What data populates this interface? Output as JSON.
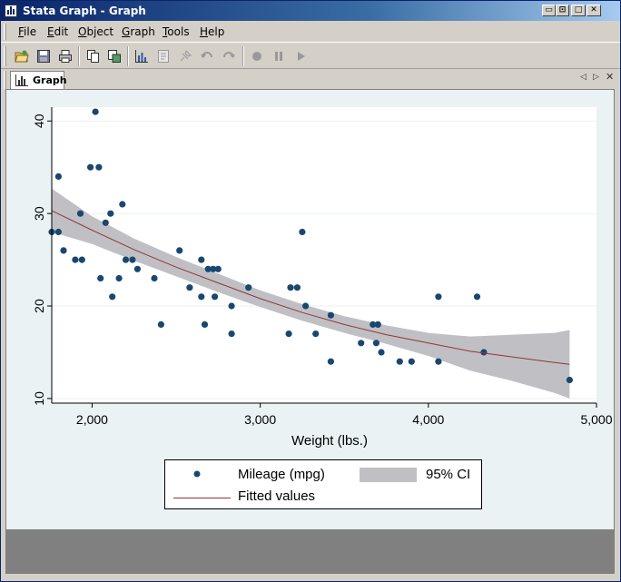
{
  "window": {
    "title": "Stata Graph - Graph"
  },
  "title_buttons": [
    "▭",
    "⊡",
    "□",
    "✕"
  ],
  "menu": [
    {
      "key": "F",
      "rest": "ile"
    },
    {
      "key": "E",
      "rest": "dit"
    },
    {
      "key": "O",
      "rest": "bject"
    },
    {
      "key": "G",
      "rest": "raph"
    },
    {
      "key": "T",
      "rest": "ools"
    },
    {
      "key": "H",
      "rest": "elp"
    }
  ],
  "toolbar_icons": [
    "open-icon",
    "save-icon",
    "print-icon",
    "copy-icon",
    "rename-icon",
    "graph-editor-icon",
    "record-icon",
    "pointer-icon",
    "undo-icon",
    "redo-icon",
    "start-recording-icon",
    "pause-icon",
    "play-icon"
  ],
  "tab": {
    "label": "Graph"
  },
  "colors": {
    "marker": "#1a476f",
    "fit_line": "#90353b",
    "ci_band": "#c0c0c4",
    "plot_bg": "#ffffff",
    "graph_bg": "#eaf2f3"
  },
  "chart_data": {
    "type": "scatter",
    "xlabel": "Weight (lbs.)",
    "ylabel": "",
    "xlim": [
      1760,
      5000
    ],
    "ylim": [
      9.5,
      41.5
    ],
    "x_ticks": [
      2000,
      3000,
      4000,
      5000
    ],
    "x_tick_labels": [
      "2,000",
      "3,000",
      "4,000",
      "5,000"
    ],
    "y_ticks": [
      10,
      20,
      30,
      40
    ],
    "y_tick_labels": [
      "10",
      "20",
      "30",
      "40"
    ],
    "grid": true,
    "legend": {
      "placement": "bottom",
      "entries": [
        "Mileage (mpg)",
        "95% CI",
        "Fitted values"
      ]
    },
    "series": [
      {
        "name": "Mileage (mpg)",
        "kind": "scatter",
        "points": [
          [
            1760,
            28
          ],
          [
            1800,
            28
          ],
          [
            1800,
            34
          ],
          [
            1830,
            26
          ],
          [
            1900,
            25
          ],
          [
            1930,
            30
          ],
          [
            1940,
            25
          ],
          [
            1990,
            35
          ],
          [
            2020,
            41
          ],
          [
            2040,
            35
          ],
          [
            2050,
            23
          ],
          [
            2080,
            29
          ],
          [
            2110,
            30
          ],
          [
            2120,
            21
          ],
          [
            2160,
            23
          ],
          [
            2180,
            31
          ],
          [
            2200,
            25
          ],
          [
            2240,
            25
          ],
          [
            2270,
            24
          ],
          [
            2370,
            23
          ],
          [
            2410,
            18
          ],
          [
            2520,
            26
          ],
          [
            2580,
            22
          ],
          [
            2650,
            25
          ],
          [
            2650,
            21
          ],
          [
            2670,
            18
          ],
          [
            2690,
            24
          ],
          [
            2720,
            24
          ],
          [
            2730,
            21
          ],
          [
            2750,
            24
          ],
          [
            2830,
            20
          ],
          [
            2830,
            17
          ],
          [
            2930,
            22
          ],
          [
            3170,
            17
          ],
          [
            3180,
            22
          ],
          [
            3220,
            22
          ],
          [
            3250,
            28
          ],
          [
            3270,
            20
          ],
          [
            3330,
            17
          ],
          [
            3420,
            19
          ],
          [
            3420,
            14
          ],
          [
            3600,
            16
          ],
          [
            3670,
            18
          ],
          [
            3690,
            16
          ],
          [
            3700,
            18
          ],
          [
            3720,
            15
          ],
          [
            3830,
            14
          ],
          [
            3900,
            14
          ],
          [
            4060,
            21
          ],
          [
            4060,
            14
          ],
          [
            4290,
            21
          ],
          [
            4330,
            15
          ],
          [
            4840,
            12
          ]
        ]
      },
      {
        "name": "Fitted values",
        "kind": "line",
        "x": [
          1760,
          2000,
          2250,
          2500,
          2750,
          3000,
          3250,
          3500,
          3750,
          4000,
          4250,
          4500,
          4750,
          4840
        ],
        "y": [
          30.3,
          28.2,
          26.1,
          24.2,
          22.5,
          20.8,
          19.3,
          18.0,
          16.9,
          16.0,
          15.1,
          14.5,
          13.9,
          13.7
        ]
      },
      {
        "name": "95% CI",
        "kind": "band",
        "x": [
          1760,
          2000,
          2250,
          2500,
          2750,
          3000,
          3250,
          3500,
          3750,
          4000,
          4250,
          4500,
          4750,
          4840
        ],
        "lower": [
          28.0,
          26.7,
          24.9,
          23.2,
          21.5,
          19.9,
          18.4,
          17.1,
          15.9,
          14.6,
          13.0,
          11.9,
          10.6,
          10.0
        ],
        "upper": [
          32.7,
          29.7,
          27.3,
          25.3,
          23.5,
          21.7,
          20.2,
          18.9,
          17.9,
          17.1,
          16.7,
          16.9,
          17.1,
          17.4
        ]
      }
    ]
  }
}
